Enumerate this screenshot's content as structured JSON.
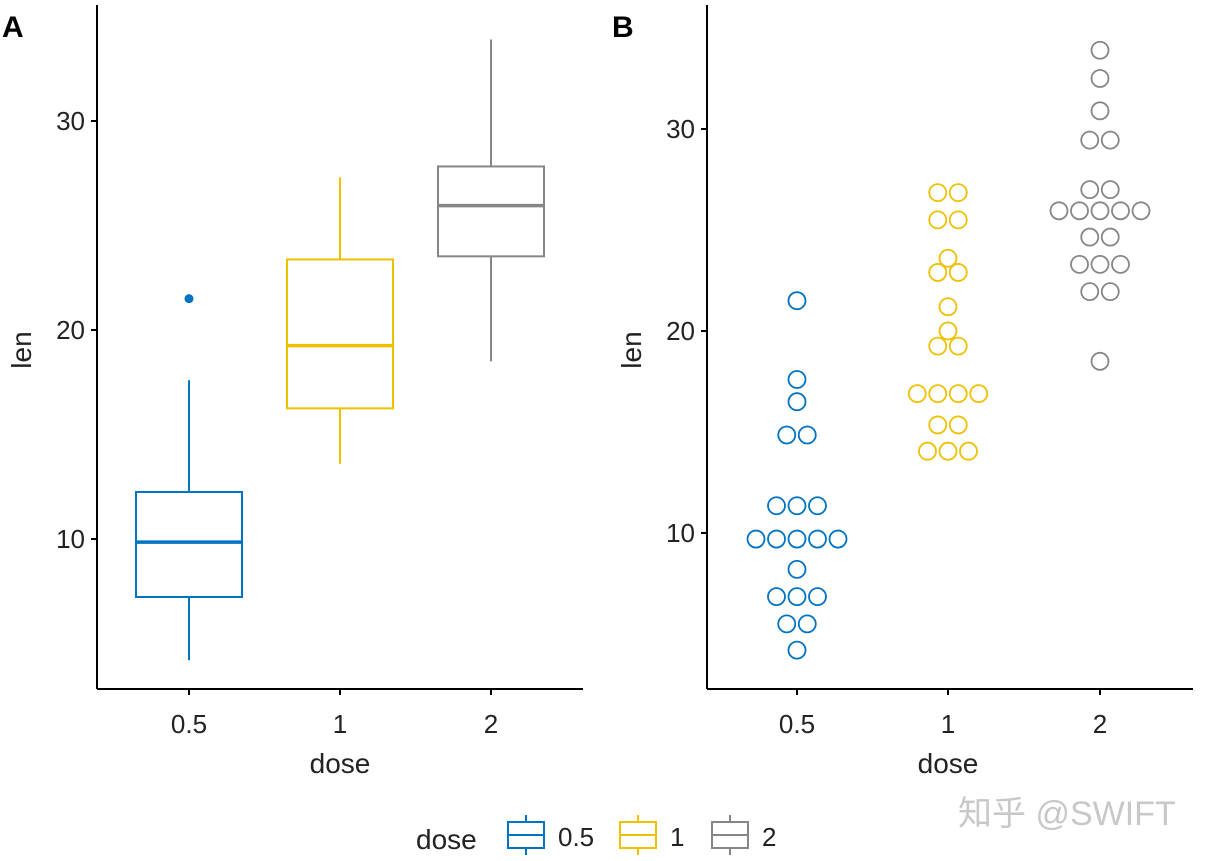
{
  "chart_data": [
    {
      "panel": "A",
      "type": "boxplot",
      "xlabel": "dose",
      "ylabel": "len",
      "categories": [
        "0.5",
        "1",
        "2"
      ],
      "yticks": [
        10,
        20,
        30
      ],
      "ylim": [
        2.7,
        35.4
      ],
      "grid": false,
      "boxes": [
        {
          "category": "0.5",
          "min": 4.2,
          "q1": 7.225,
          "median": 9.85,
          "q3": 12.25,
          "max": 17.6,
          "outliers": [
            21.5
          ]
        },
        {
          "category": "1",
          "min": 13.6,
          "q1": 16.25,
          "median": 19.25,
          "q3": 23.375,
          "max": 27.3,
          "outliers": []
        },
        {
          "category": "2",
          "min": 18.5,
          "q1": 23.525,
          "median": 25.95,
          "q3": 27.825,
          "max": 33.9,
          "outliers": []
        }
      ]
    },
    {
      "panel": "B",
      "type": "dotplot",
      "xlabel": "dose",
      "ylabel": "len",
      "categories": [
        "0.5",
        "1",
        "2"
      ],
      "yticks": [
        10,
        20,
        30
      ],
      "ylim": [
        2.7,
        35.4
      ],
      "grid": false,
      "binwidth": 1.0,
      "values": {
        "0.5": [
          4.2,
          11.5,
          7.3,
          5.8,
          6.4,
          10,
          11.2,
          11.2,
          5.2,
          7,
          15.2,
          21.5,
          17.6,
          9.7,
          14.5,
          10,
          8.2,
          9.4,
          16.5,
          9.7
        ],
        "1": [
          16.5,
          16.5,
          15.2,
          17.3,
          22.5,
          17.3,
          13.6,
          14.5,
          18.8,
          15.5,
          19.7,
          23.3,
          23.6,
          26.4,
          20,
          25.2,
          25.8,
          21.2,
          14.5,
          27.3
        ],
        "2": [
          23.6,
          18.5,
          33.9,
          25.5,
          26.4,
          32.5,
          26.7,
          21.5,
          23.3,
          29.5,
          25.5,
          26.4,
          22.4,
          24.5,
          24.8,
          30.9,
          26.4,
          27.3,
          29.4,
          23
        ]
      }
    }
  ],
  "legend": {
    "title": "dose",
    "position": "bottom",
    "items": [
      "0.5",
      "1",
      "2"
    ]
  },
  "colors": {
    "0.5": "#0073C2",
    "1": "#EFC000",
    "2": "#868686"
  },
  "watermark": "知乎 @SWIFT"
}
